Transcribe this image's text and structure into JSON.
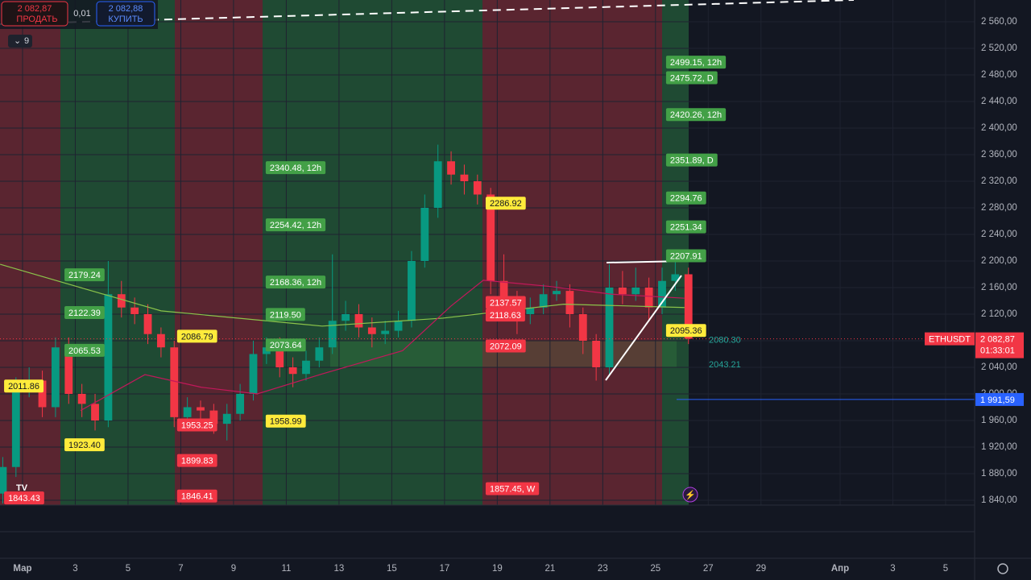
{
  "chart_data": {
    "type": "candlestick",
    "symbol": "ETHUSDT",
    "xlim": [
      0.145,
      37.1
    ],
    "xticks": [
      {
        "value": 1,
        "label": "Мар"
      },
      3,
      5,
      7,
      9,
      11,
      13,
      15,
      17,
      19,
      21,
      23,
      25,
      27,
      29,
      {
        "value": 32,
        "label": "Апр"
      },
      {
        "value": 34,
        "label": "3"
      },
      {
        "value": 36,
        "label": "5"
      }
    ],
    "ylim": [
      1832.7,
      2592.7
    ],
    "yticks": [
      {
        "value": 1840,
        "label": "1 840,00"
      },
      {
        "value": 1880,
        "label": "1 880,00"
      },
      {
        "value": 1920,
        "label": "1 920,00"
      },
      {
        "value": 1960,
        "label": "1 960,00"
      },
      {
        "value": 2000,
        "label": "2 000,00"
      },
      {
        "value": 2040,
        "label": "2 040,00"
      },
      {
        "value": 2080,
        "label": "2 080,00"
      },
      {
        "value": 2120,
        "label": "2 120,00"
      },
      {
        "value": 2160,
        "label": "2 160,00"
      },
      {
        "value": 2200,
        "label": "2 200,00"
      },
      {
        "value": 2240,
        "label": "2 240,00"
      },
      {
        "value": 2280,
        "label": "2 280,00"
      },
      {
        "value": 2320,
        "label": "2 320,00"
      },
      {
        "value": 2360,
        "label": "2 360,00"
      },
      {
        "value": 2400,
        "label": "2 400,00"
      },
      {
        "value": 2440,
        "label": "2 440,00"
      },
      {
        "value": 2480,
        "label": "2 480,00"
      },
      {
        "value": 2520,
        "label": "2 520,00"
      },
      {
        "value": 2560,
        "label": "2 560,00"
      }
    ],
    "up_color": "#089981",
    "down_color": "#f23645",
    "x": [
      0.25,
      0.75,
      1.25,
      1.75,
      2.25,
      2.75,
      3.25,
      3.75,
      4.25,
      4.75,
      5.25,
      5.75,
      6.25,
      6.75,
      7.25,
      7.75,
      8.25,
      8.75,
      9.25,
      9.75,
      10.25,
      10.75,
      11.25,
      11.75,
      12.25,
      12.75,
      13.25,
      13.75,
      14.25,
      14.75,
      15.25,
      15.75,
      16.25,
      16.75,
      17.25,
      17.75,
      18.25,
      18.75,
      19.25,
      19.75,
      20.25,
      20.75,
      21.25,
      21.75,
      22.25,
      22.75,
      23.25,
      23.75,
      24.25,
      24.75,
      25.25,
      25.75,
      26.25
    ],
    "open": [
      1850,
      1890,
      2010,
      2020,
      1980,
      2070,
      2000,
      1985,
      1960,
      2150,
      2130,
      2120,
      2090,
      2070,
      1965,
      1980,
      1975,
      1955,
      1970,
      2000,
      2060,
      2070,
      2040,
      2030,
      2050,
      2070,
      2110,
      2120,
      2100,
      2090,
      2095,
      2110,
      2200,
      2280,
      2350,
      2330,
      2320,
      2300,
      2170,
      2140,
      2120,
      2130,
      2150,
      2155,
      2120,
      2080,
      2040,
      2160,
      2150,
      2160,
      2130,
      2170,
      2180
    ],
    "high": [
      1905,
      2025,
      2040,
      2035,
      2085,
      2085,
      2015,
      2000,
      2200,
      2170,
      2145,
      2135,
      2100,
      2080,
      1995,
      1990,
      1985,
      1985,
      2015,
      2080,
      2085,
      2085,
      2055,
      2065,
      2085,
      2210,
      2140,
      2135,
      2115,
      2110,
      2125,
      2215,
      2300,
      2375,
      2365,
      2345,
      2330,
      2310,
      2210,
      2155,
      2145,
      2165,
      2170,
      2165,
      2130,
      2090,
      2195,
      2185,
      2190,
      2175,
      2190,
      2200,
      2190
    ],
    "low": [
      1835,
      1875,
      1995,
      1965,
      1965,
      1985,
      1965,
      1945,
      1950,
      2115,
      2105,
      2075,
      2055,
      1950,
      1950,
      1960,
      1940,
      1930,
      1960,
      1990,
      2045,
      2025,
      2010,
      2020,
      2040,
      2060,
      2095,
      2085,
      2070,
      2075,
      2085,
      2100,
      2190,
      2265,
      2315,
      2300,
      2285,
      2150,
      2125,
      2090,
      2105,
      2120,
      2140,
      2100,
      2060,
      2020,
      2030,
      2135,
      2140,
      2110,
      2120,
      2155,
      2075
    ],
    "close": [
      1890,
      2010,
      2020,
      1980,
      2070,
      2000,
      1985,
      1960,
      2150,
      2130,
      2120,
      2090,
      2070,
      1965,
      1980,
      1975,
      1955,
      1970,
      2000,
      2060,
      2070,
      2040,
      2030,
      2050,
      2070,
      2110,
      2120,
      2100,
      2090,
      2095,
      2110,
      2200,
      2280,
      2350,
      2330,
      2320,
      2300,
      2170,
      2140,
      2120,
      2130,
      2150,
      2155,
      2120,
      2080,
      2040,
      2160,
      2150,
      2160,
      2130,
      2170,
      2180,
      2083
    ],
    "lines": [
      {
        "color": "#8bc34a",
        "x": [
          0.15,
          6.25,
          12.36,
          16.94,
          21.52,
          26.1
        ],
        "values": [
          2195,
          2125,
          2102,
          2114,
          2135,
          2130
        ]
      },
      {
        "color": "#c2185b",
        "x": [
          3.2,
          5.64,
          7.78,
          9.9,
          12.36,
          15.41,
          17.24,
          18.47,
          20.91,
          23.35,
          26.1
        ],
        "values": [
          1975,
          2029,
          2010,
          2000,
          2030,
          2065,
          2132,
          2171,
          2162,
          2150,
          2144
        ]
      }
    ],
    "annotations": [
      {
        "text": "2499.15, 12h",
        "value": 2499.15,
        "x": 25.4,
        "color": "#43a047"
      },
      {
        "text": "2475.72, D",
        "value": 2475.72,
        "x": 25.4,
        "color": "#43a047"
      },
      {
        "text": "2420.26, 12h",
        "value": 2420.26,
        "x": 25.4,
        "color": "#43a047"
      },
      {
        "text": "2351.89, D",
        "value": 2351.89,
        "x": 25.4,
        "color": "#43a047"
      },
      {
        "text": "2294.76",
        "value": 2294.76,
        "x": 25.4,
        "color": "#43a047"
      },
      {
        "text": "2251.34",
        "value": 2251.34,
        "x": 25.4,
        "color": "#43a047"
      },
      {
        "text": "2207.91",
        "value": 2207.91,
        "x": 25.4,
        "color": "#43a047"
      },
      {
        "text": "2095.36",
        "value": 2095.36,
        "x": 25.4,
        "color": "#ffeb3b"
      },
      {
        "text": "2340.48, 12h",
        "value": 2340.48,
        "x": 10.22,
        "color": "#43a047"
      },
      {
        "text": "2254.42, 12h",
        "value": 2254.42,
        "x": 10.22,
        "color": "#43a047"
      },
      {
        "text": "2168.36, 12h",
        "value": 2168.36,
        "x": 10.22,
        "color": "#43a047"
      },
      {
        "text": "2119.50",
        "value": 2119.5,
        "x": 10.22,
        "color": "#43a047"
      },
      {
        "text": "2073.64",
        "value": 2073.64,
        "x": 10.22,
        "color": "#43a047"
      },
      {
        "text": "1958.99",
        "value": 1958.99,
        "x": 10.22,
        "color": "#ffeb3b"
      },
      {
        "text": "2179.24",
        "value": 2179.24,
        "x": 2.59,
        "color": "#43a047"
      },
      {
        "text": "2122.39",
        "value": 2122.39,
        "x": 2.59,
        "color": "#43a047"
      },
      {
        "text": "2065.53",
        "value": 2065.53,
        "x": 2.59,
        "color": "#43a047"
      },
      {
        "text": "1923.40",
        "value": 1923.4,
        "x": 2.59,
        "color": "#ffeb3b"
      },
      {
        "text": "2011.86",
        "value": 2011.86,
        "x": 0.3,
        "color": "#ffeb3b"
      },
      {
        "text": "1843.43",
        "value": 1843.43,
        "x": 0.3,
        "color": "#f23645"
      },
      {
        "text": "2086.79",
        "value": 2086.79,
        "x": 6.86,
        "color": "#ffeb3b"
      },
      {
        "text": "1953.25",
        "value": 1953.25,
        "x": 6.86,
        "color": "#f23645"
      },
      {
        "text": "1899.83",
        "value": 1899.83,
        "x": 6.86,
        "color": "#f23645"
      },
      {
        "text": "1846.41",
        "value": 1846.41,
        "x": 6.86,
        "color": "#f23645"
      },
      {
        "text": "2286.92",
        "value": 2286.92,
        "x": 18.56,
        "color": "#ffeb3b"
      },
      {
        "text": "2137.57",
        "value": 2137.57,
        "x": 18.56,
        "color": "#f23645"
      },
      {
        "text": "2118.63",
        "value": 2118.63,
        "x": 18.56,
        "color": "#f23645"
      },
      {
        "text": "2072.09",
        "value": 2072.09,
        "x": 18.56,
        "color": "#f23645"
      },
      {
        "text": "1857.45, W",
        "value": 1857.45,
        "x": 18.56,
        "color": "#f23645"
      }
    ],
    "levels": [
      {
        "text": "2080.30",
        "value": 2080.3
      },
      {
        "text": "2043.21",
        "value": 2043.21
      }
    ],
    "price_line": {
      "value": 1991.59,
      "label": "1 991,59",
      "color": "#2962ff"
    },
    "last_price": {
      "value": 2082.87,
      "label": "2 082,87",
      "countdown": "01:33:01",
      "color": "#f23645"
    }
  },
  "order_panel": {
    "sell_price": "2 082,87",
    "sell": "ПРОДАТЬ",
    "spread": "0,01",
    "buy_price": "2 082,88",
    "buy": "КУПИТЬ"
  },
  "indicators_count": 9
}
